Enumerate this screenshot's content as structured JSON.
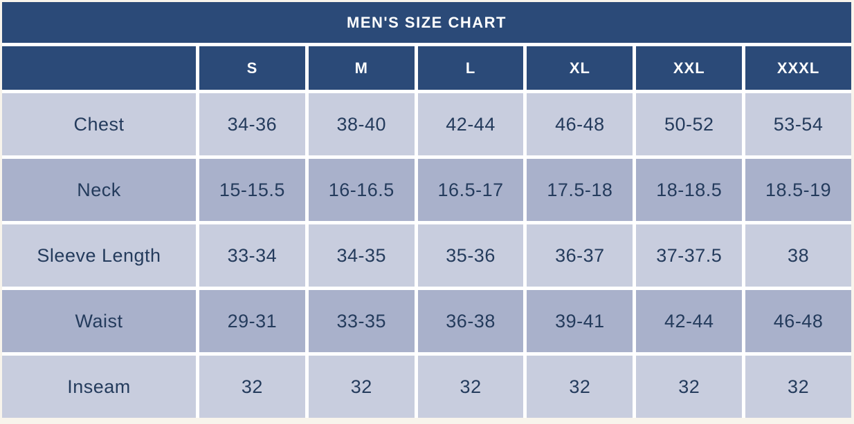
{
  "chart_data": {
    "type": "table",
    "title": "MEN'S SIZE CHART",
    "columns": [
      "S",
      "M",
      "L",
      "XL",
      "XXL",
      "XXXL"
    ],
    "rows": [
      {
        "label": "Chest",
        "values": [
          "34-36",
          "38-40",
          "42-44",
          "46-48",
          "50-52",
          "53-54"
        ]
      },
      {
        "label": "Neck",
        "values": [
          "15-15.5",
          "16-16.5",
          "16.5-17",
          "17.5-18",
          "18-18.5",
          "18.5-19"
        ]
      },
      {
        "label": "Sleeve Length",
        "values": [
          "33-34",
          "34-35",
          "35-36",
          "36-37",
          "37-37.5",
          "38"
        ]
      },
      {
        "label": "Waist",
        "values": [
          "29-31",
          "33-35",
          "36-38",
          "39-41",
          "42-44",
          "46-48"
        ]
      },
      {
        "label": "Inseam",
        "values": [
          "32",
          "32",
          "32",
          "32",
          "32",
          "32"
        ]
      }
    ]
  },
  "colors": {
    "header_bg": "#2b4a78",
    "header_text": "#ffffff",
    "row_light_bg": "#c8cdde",
    "row_dark_bg": "#a9b1cb",
    "cell_text": "#243b5c",
    "page_bg": "#f8f4ec",
    "gap_color": "#ffffff"
  }
}
